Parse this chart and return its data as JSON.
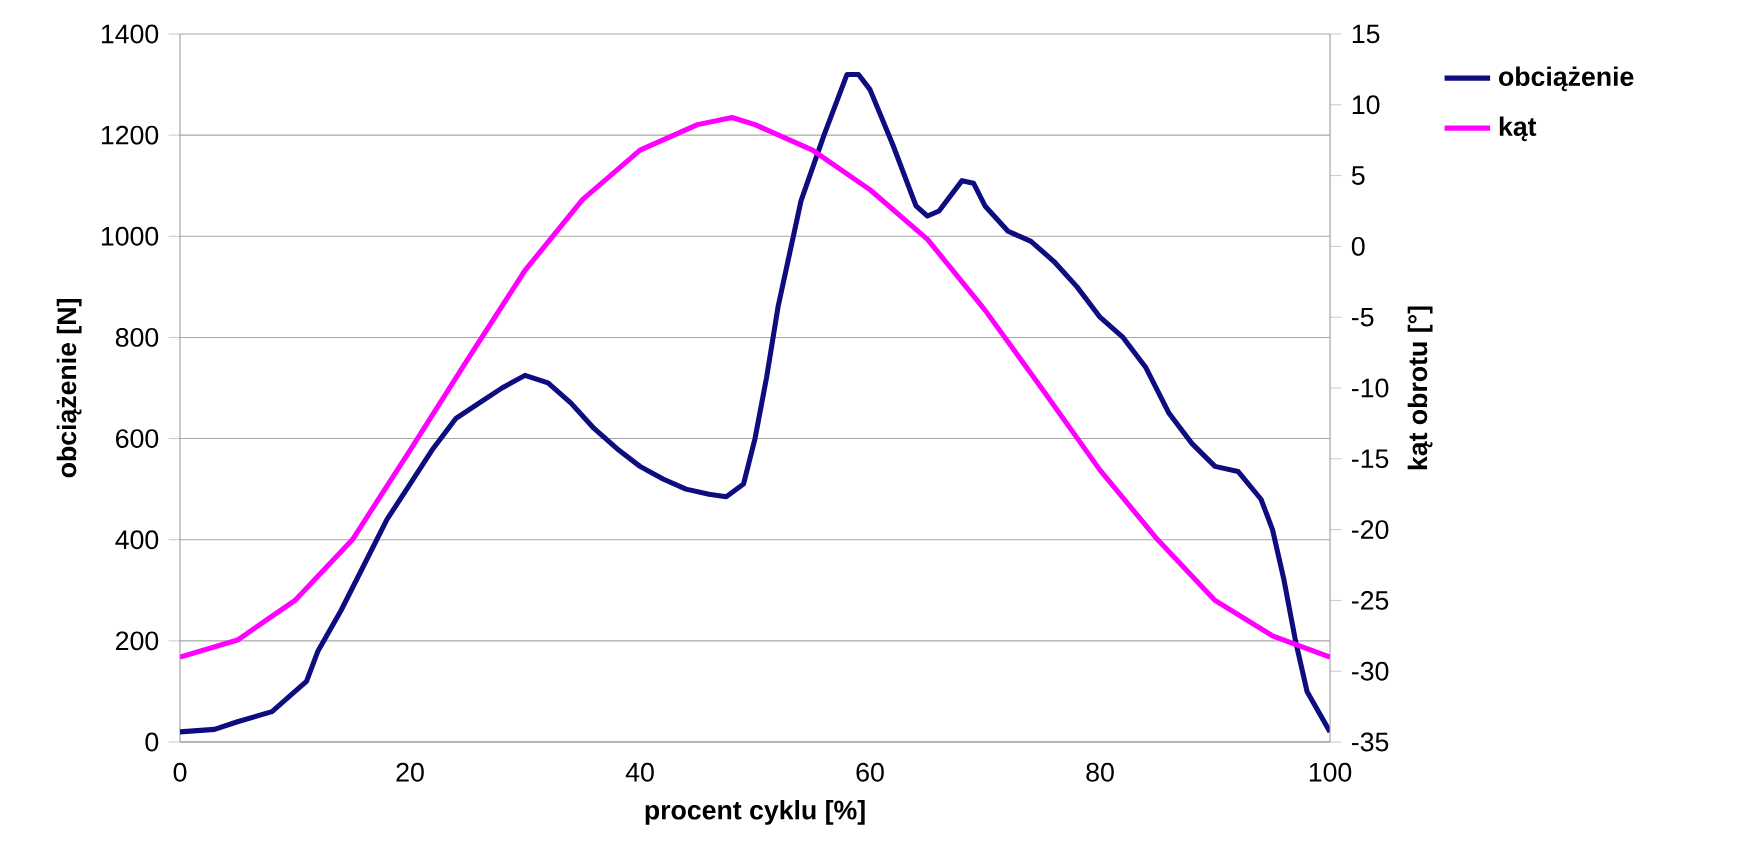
{
  "chart_data": {
    "type": "line",
    "xlabel": "procent cyklu [%]",
    "ylabel": "obciążenie [N]",
    "y2label": "kąt obrotu [°]",
    "x": [
      0,
      3,
      5,
      8,
      10,
      11,
      12,
      14,
      16,
      18,
      20,
      22,
      24,
      26,
      28,
      30,
      32,
      34,
      36,
      38,
      40,
      42,
      44,
      46,
      47.5,
      49,
      50,
      51,
      52,
      54,
      56,
      58,
      59,
      60,
      62,
      64,
      65,
      66,
      68,
      69,
      70,
      72,
      74,
      76,
      78,
      80,
      82,
      84,
      86,
      88,
      90,
      92,
      94,
      95,
      96,
      97,
      98,
      100
    ],
    "series": [
      {
        "name": "obciążenie",
        "color": "#0d0d80",
        "axis": "y",
        "values": [
          20,
          25,
          40,
          60,
          100,
          120,
          180,
          260,
          350,
          440,
          510,
          580,
          640,
          670,
          700,
          725,
          710,
          670,
          620,
          580,
          545,
          520,
          500,
          490,
          485,
          510,
          600,
          720,
          860,
          1070,
          1200,
          1320,
          1320,
          1290,
          1180,
          1060,
          1040,
          1050,
          1110,
          1105,
          1060,
          1010,
          990,
          950,
          900,
          840,
          800,
          740,
          650,
          590,
          545,
          535,
          480,
          420,
          320,
          200,
          100,
          20
        ]
      },
      {
        "name": "kąt",
        "color": "#ff00ff",
        "axis": "y2",
        "x": [
          0,
          5,
          10,
          15,
          20,
          25,
          30,
          35,
          40,
          45,
          48,
          50,
          55,
          60,
          65,
          70,
          75,
          80,
          85,
          90,
          95,
          100
        ],
        "values": [
          -29,
          -27.8,
          -25,
          -20.7,
          -14.4,
          -8,
          -1.7,
          3.3,
          6.8,
          8.6,
          9.1,
          8.6,
          6.8,
          4,
          0.5,
          -4.5,
          -10.1,
          -15.8,
          -20.7,
          -25,
          -27.5,
          -29
        ]
      }
    ],
    "xlim": [
      0,
      100
    ],
    "xticks": [
      0,
      20,
      40,
      60,
      80,
      100
    ],
    "ylim": [
      0,
      1400
    ],
    "yticks": [
      0,
      200,
      400,
      600,
      800,
      1000,
      1200,
      1400
    ],
    "y2lim": [
      -35,
      15
    ],
    "y2ticks": [
      -35,
      -30,
      -25,
      -20,
      -15,
      -10,
      -5,
      0,
      5,
      10,
      15
    ],
    "grid": "y",
    "legend": "right",
    "line_style": "solid"
  }
}
